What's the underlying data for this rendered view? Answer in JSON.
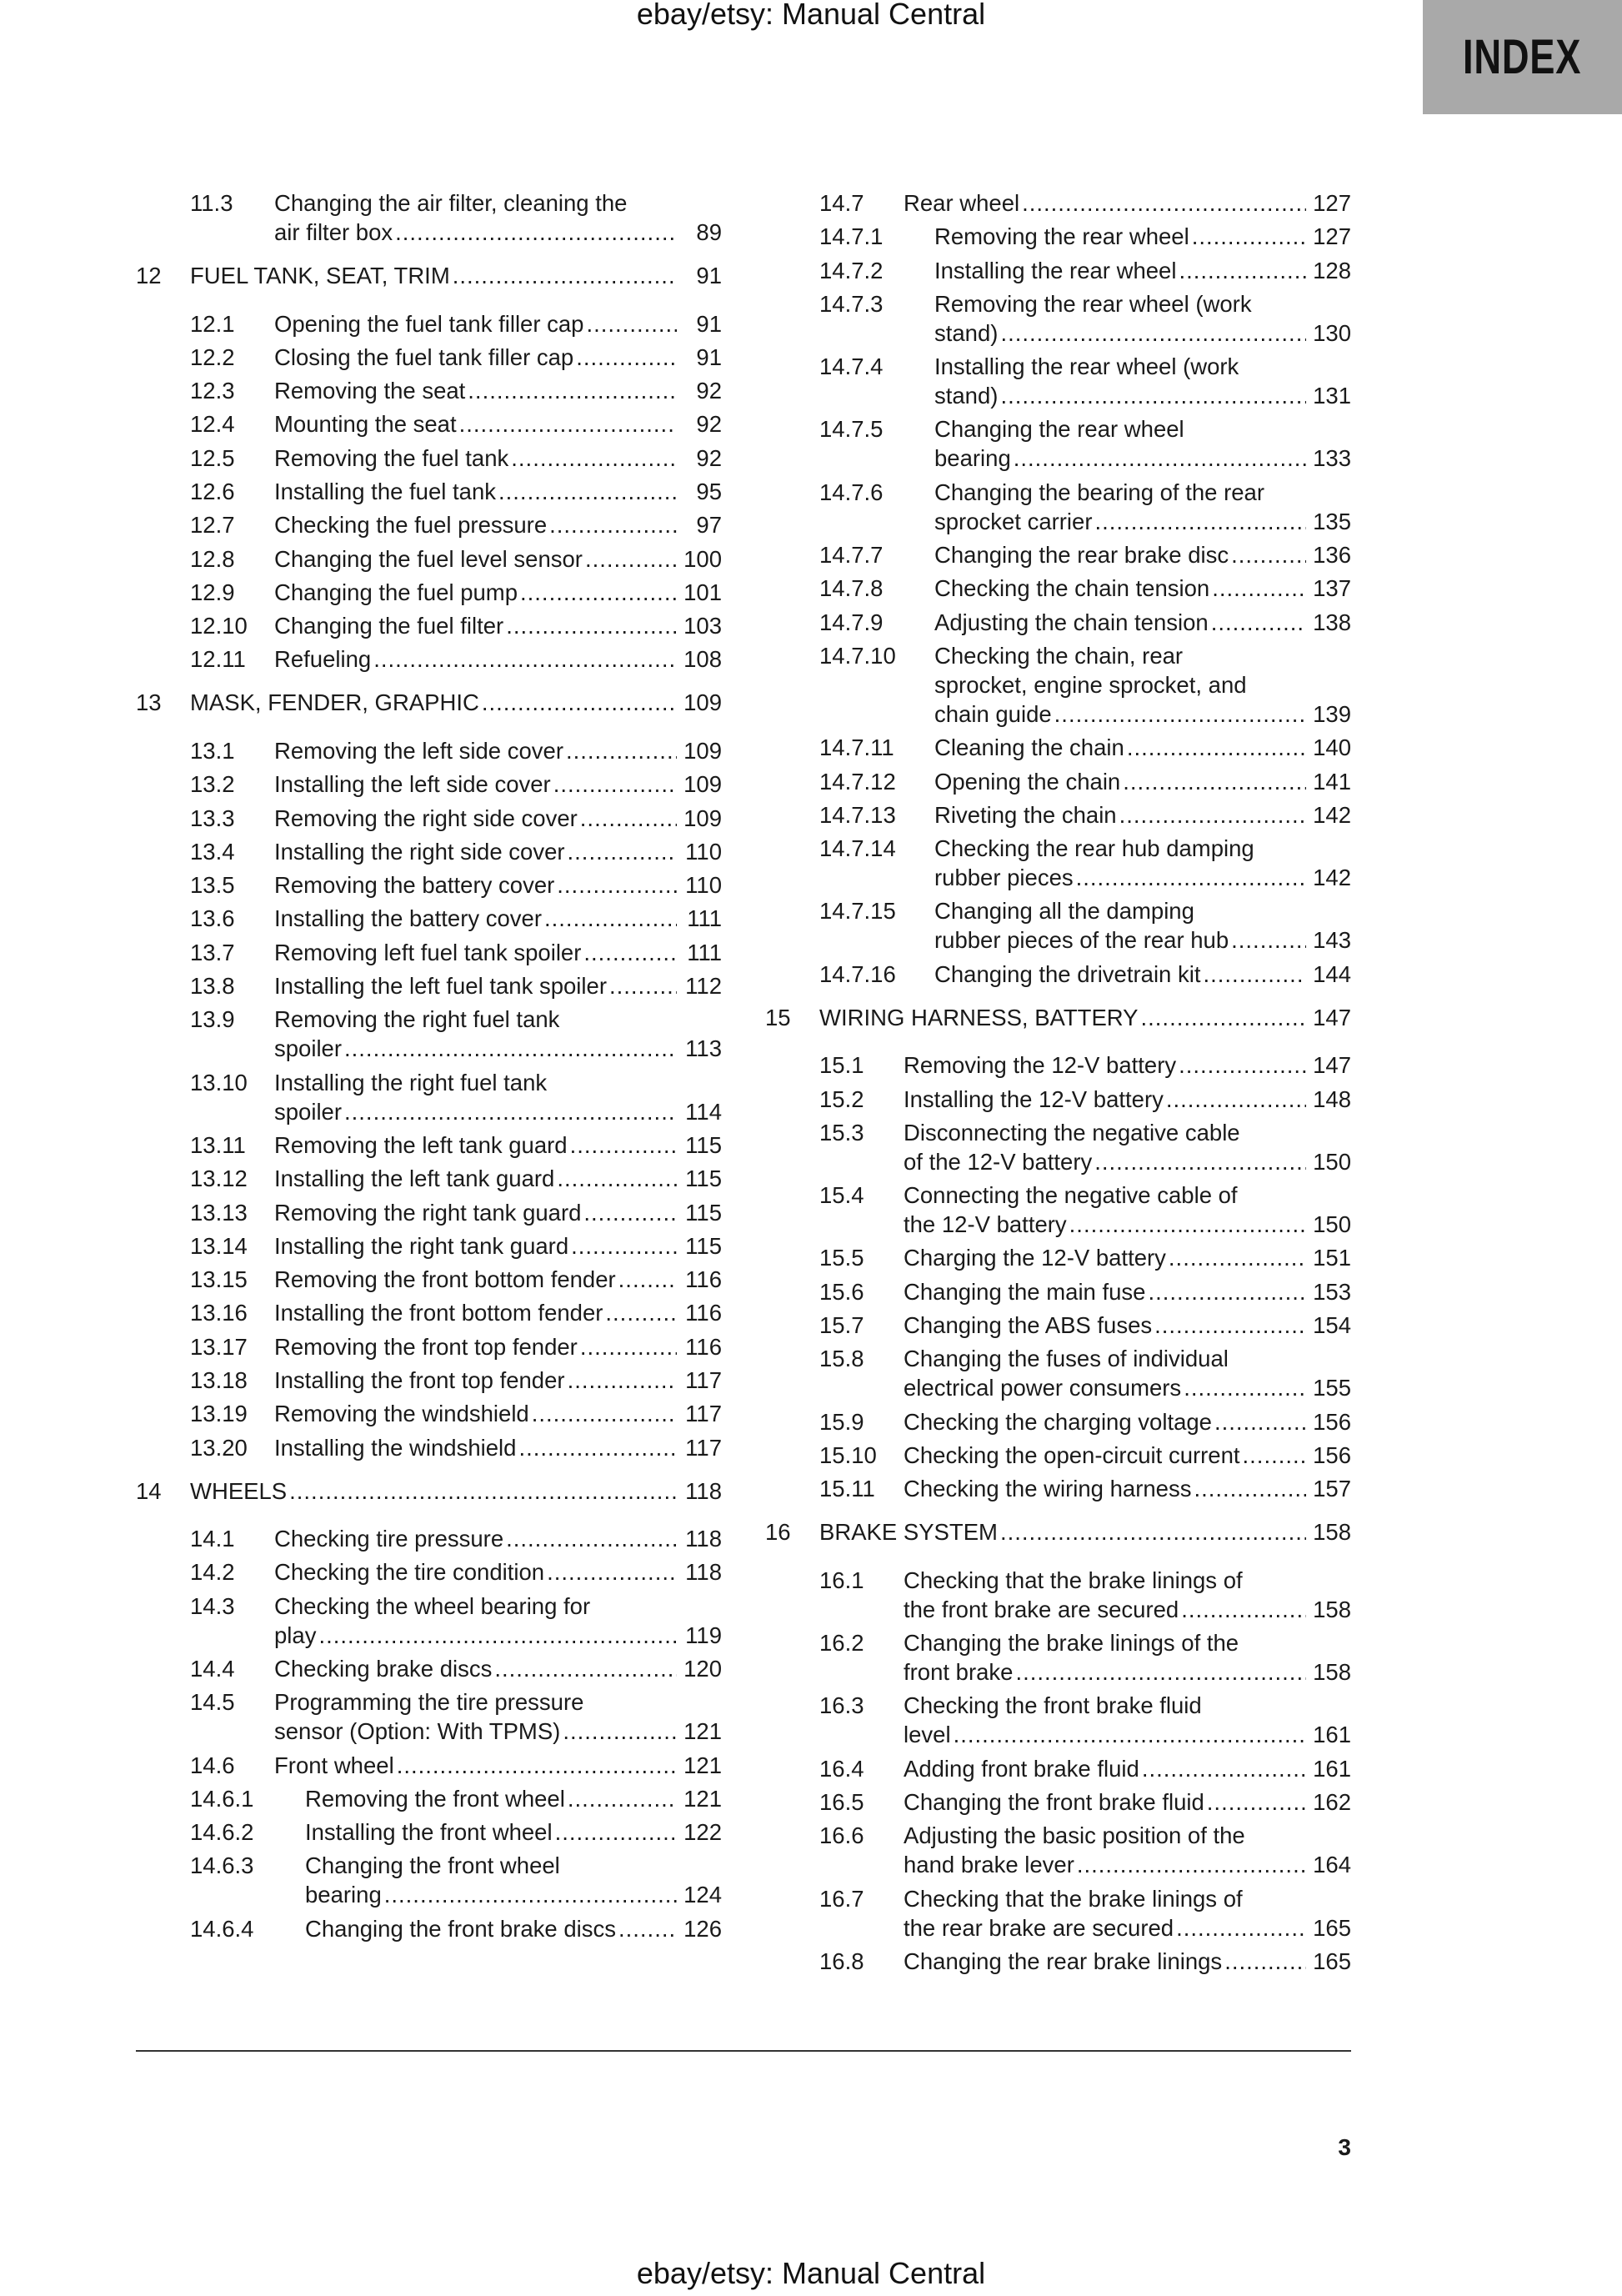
{
  "watermark_top": "ebay/etsy: Manual Central",
  "watermark_bottom": "ebay/etsy: Manual Central",
  "tab_label": "INDEX",
  "page_number": "3",
  "columns": {
    "left": [
      {
        "num": "11.3",
        "lines": [
          "Changing the air filter, cleaning the",
          "air filter box"
        ],
        "page": "89",
        "level": "section"
      },
      {
        "num": "12",
        "lines": [
          "FUEL TANK, SEAT, TRIM"
        ],
        "page": "91",
        "level": "chapter"
      },
      {
        "num": "12.1",
        "lines": [
          "Opening the fuel tank filler cap"
        ],
        "page": "91",
        "level": "section"
      },
      {
        "num": "12.2",
        "lines": [
          "Closing the fuel tank filler cap"
        ],
        "page": "91",
        "level": "section"
      },
      {
        "num": "12.3",
        "lines": [
          "Removing the seat"
        ],
        "page": "92",
        "level": "section"
      },
      {
        "num": "12.4",
        "lines": [
          "Mounting the seat"
        ],
        "page": "92",
        "level": "section"
      },
      {
        "num": "12.5",
        "lines": [
          "Removing the fuel tank"
        ],
        "page": "92",
        "level": "section"
      },
      {
        "num": "12.6",
        "lines": [
          "Installing the fuel tank"
        ],
        "page": "95",
        "level": "section"
      },
      {
        "num": "12.7",
        "lines": [
          "Checking the fuel pressure"
        ],
        "page": "97",
        "level": "section"
      },
      {
        "num": "12.8",
        "lines": [
          "Changing the fuel level sensor"
        ],
        "page": "100",
        "level": "section"
      },
      {
        "num": "12.9",
        "lines": [
          "Changing the fuel pump"
        ],
        "page": "101",
        "level": "section"
      },
      {
        "num": "12.10",
        "lines": [
          "Changing the fuel filter"
        ],
        "page": "103",
        "level": "section"
      },
      {
        "num": "12.11",
        "lines": [
          "Refueling"
        ],
        "page": "108",
        "level": "section"
      },
      {
        "num": "13",
        "lines": [
          "MASK, FENDER, GRAPHIC"
        ],
        "page": "109",
        "level": "chapter"
      },
      {
        "num": "13.1",
        "lines": [
          "Removing the left side cover"
        ],
        "page": "109",
        "level": "section"
      },
      {
        "num": "13.2",
        "lines": [
          "Installing the left side cover"
        ],
        "page": "109",
        "level": "section"
      },
      {
        "num": "13.3",
        "lines": [
          "Removing the right side cover"
        ],
        "page": "109",
        "level": "section"
      },
      {
        "num": "13.4",
        "lines": [
          "Installing the right side cover"
        ],
        "page": "110",
        "level": "section"
      },
      {
        "num": "13.5",
        "lines": [
          "Removing the battery cover"
        ],
        "page": "110",
        "level": "section"
      },
      {
        "num": "13.6",
        "lines": [
          "Installing the battery cover"
        ],
        "page": "111",
        "level": "section"
      },
      {
        "num": "13.7",
        "lines": [
          "Removing left fuel tank spoiler"
        ],
        "page": "111",
        "level": "section"
      },
      {
        "num": "13.8",
        "lines": [
          "Installing the left fuel tank spoiler"
        ],
        "page": "112",
        "level": "section"
      },
      {
        "num": "13.9",
        "lines": [
          "Removing the right fuel tank",
          "spoiler"
        ],
        "page": "113",
        "level": "section"
      },
      {
        "num": "13.10",
        "lines": [
          "Installing the right fuel tank",
          "spoiler"
        ],
        "page": "114",
        "level": "section"
      },
      {
        "num": "13.11",
        "lines": [
          "Removing the left tank guard"
        ],
        "page": "115",
        "level": "section"
      },
      {
        "num": "13.12",
        "lines": [
          "Installing the left tank guard"
        ],
        "page": "115",
        "level": "section"
      },
      {
        "num": "13.13",
        "lines": [
          "Removing the right tank guard"
        ],
        "page": "115",
        "level": "section"
      },
      {
        "num": "13.14",
        "lines": [
          "Installing the right tank guard"
        ],
        "page": "115",
        "level": "section"
      },
      {
        "num": "13.15",
        "lines": [
          "Removing the front bottom fender"
        ],
        "page": "116",
        "level": "section"
      },
      {
        "num": "13.16",
        "lines": [
          "Installing the front bottom fender"
        ],
        "page": "116",
        "level": "section"
      },
      {
        "num": "13.17",
        "lines": [
          "Removing the front top fender"
        ],
        "page": "116",
        "level": "section"
      },
      {
        "num": "13.18",
        "lines": [
          "Installing the front top fender"
        ],
        "page": "117",
        "level": "section"
      },
      {
        "num": "13.19",
        "lines": [
          "Removing the windshield"
        ],
        "page": "117",
        "level": "section"
      },
      {
        "num": "13.20",
        "lines": [
          "Installing the windshield"
        ],
        "page": "117",
        "level": "section"
      },
      {
        "num": "14",
        "lines": [
          "WHEELS"
        ],
        "page": "118",
        "level": "chapter"
      },
      {
        "num": "14.1",
        "lines": [
          "Checking tire pressure"
        ],
        "page": "118",
        "level": "section"
      },
      {
        "num": "14.2",
        "lines": [
          "Checking the tire condition"
        ],
        "page": "118",
        "level": "section"
      },
      {
        "num": "14.3",
        "lines": [
          "Checking the wheel bearing for",
          "play"
        ],
        "page": "119",
        "level": "section"
      },
      {
        "num": "14.4",
        "lines": [
          "Checking brake discs"
        ],
        "page": "120",
        "level": "section"
      },
      {
        "num": "14.5",
        "lines": [
          "Programming the tire pressure",
          "sensor (Option: With TPMS)"
        ],
        "page": "121",
        "level": "section"
      },
      {
        "num": "14.6",
        "lines": [
          "Front wheel"
        ],
        "page": "121",
        "level": "section"
      },
      {
        "num": "14.6.1",
        "lines": [
          "Removing the front wheel"
        ],
        "page": "121",
        "level": "sub"
      },
      {
        "num": "14.6.2",
        "lines": [
          "Installing the front wheel"
        ],
        "page": "122",
        "level": "sub"
      },
      {
        "num": "14.6.3",
        "lines": [
          "Changing the front wheel",
          "bearing"
        ],
        "page": "124",
        "level": "sub"
      },
      {
        "num": "14.6.4",
        "lines": [
          "Changing the front brake discs"
        ],
        "page": "126",
        "level": "sub"
      }
    ],
    "right": [
      {
        "num": "14.7",
        "lines": [
          "Rear wheel"
        ],
        "page": "127",
        "level": "section"
      },
      {
        "num": "14.7.1",
        "lines": [
          "Removing the rear wheel"
        ],
        "page": "127",
        "level": "sub"
      },
      {
        "num": "14.7.2",
        "lines": [
          "Installing the rear wheel"
        ],
        "page": "128",
        "level": "sub"
      },
      {
        "num": "14.7.3",
        "lines": [
          "Removing the rear wheel (work",
          "stand)"
        ],
        "page": "130",
        "level": "sub"
      },
      {
        "num": "14.7.4",
        "lines": [
          "Installing the rear wheel (work",
          "stand)"
        ],
        "page": "131",
        "level": "sub"
      },
      {
        "num": "14.7.5",
        "lines": [
          "Changing the rear wheel",
          "bearing"
        ],
        "page": "133",
        "level": "sub"
      },
      {
        "num": "14.7.6",
        "lines": [
          "Changing the bearing of the rear",
          "sprocket carrier"
        ],
        "page": "135",
        "level": "sub"
      },
      {
        "num": "14.7.7",
        "lines": [
          "Changing the rear brake disc"
        ],
        "page": "136",
        "level": "sub"
      },
      {
        "num": "14.7.8",
        "lines": [
          "Checking the chain tension"
        ],
        "page": "137",
        "level": "sub"
      },
      {
        "num": "14.7.9",
        "lines": [
          "Adjusting the chain tension"
        ],
        "page": "138",
        "level": "sub"
      },
      {
        "num": "14.7.10",
        "lines": [
          "Checking the chain, rear",
          "sprocket, engine sprocket, and",
          "chain guide"
        ],
        "page": "139",
        "level": "sub"
      },
      {
        "num": "14.7.11",
        "lines": [
          "Cleaning the chain"
        ],
        "page": "140",
        "level": "sub"
      },
      {
        "num": "14.7.12",
        "lines": [
          "Opening the chain"
        ],
        "page": "141",
        "level": "sub"
      },
      {
        "num": "14.7.13",
        "lines": [
          "Riveting the chain"
        ],
        "page": "142",
        "level": "sub"
      },
      {
        "num": "14.7.14",
        "lines": [
          "Checking the rear hub damping",
          "rubber pieces"
        ],
        "page": "142",
        "level": "sub"
      },
      {
        "num": "14.7.15",
        "lines": [
          "Changing all the damping",
          "rubber pieces of the rear hub"
        ],
        "page": "143",
        "level": "sub"
      },
      {
        "num": "14.7.16",
        "lines": [
          "Changing the drivetrain kit"
        ],
        "page": "144",
        "level": "sub"
      },
      {
        "num": "15",
        "lines": [
          "WIRING HARNESS, BATTERY"
        ],
        "page": "147",
        "level": "chapter"
      },
      {
        "num": "15.1",
        "lines": [
          "Removing the 12-V battery"
        ],
        "page": "147",
        "level": "section"
      },
      {
        "num": "15.2",
        "lines": [
          "Installing the 12-V battery"
        ],
        "page": "148",
        "level": "section"
      },
      {
        "num": "15.3",
        "lines": [
          "Disconnecting the negative cable",
          "of the 12-V battery"
        ],
        "page": "150",
        "level": "section"
      },
      {
        "num": "15.4",
        "lines": [
          "Connecting the negative cable of",
          "the 12-V battery"
        ],
        "page": "150",
        "level": "section"
      },
      {
        "num": "15.5",
        "lines": [
          "Charging the 12-V battery"
        ],
        "page": "151",
        "level": "section"
      },
      {
        "num": "15.6",
        "lines": [
          "Changing the main fuse"
        ],
        "page": "153",
        "level": "section"
      },
      {
        "num": "15.7",
        "lines": [
          "Changing the ABS fuses"
        ],
        "page": "154",
        "level": "section"
      },
      {
        "num": "15.8",
        "lines": [
          "Changing the fuses of individual",
          "electrical power consumers"
        ],
        "page": "155",
        "level": "section"
      },
      {
        "num": "15.9",
        "lines": [
          "Checking the charging voltage"
        ],
        "page": "156",
        "level": "section"
      },
      {
        "num": "15.10",
        "lines": [
          "Checking the open-circuit current"
        ],
        "page": "156",
        "level": "section"
      },
      {
        "num": "15.11",
        "lines": [
          "Checking the wiring harness"
        ],
        "page": "157",
        "level": "section"
      },
      {
        "num": "16",
        "lines": [
          "BRAKE SYSTEM"
        ],
        "page": "158",
        "level": "chapter"
      },
      {
        "num": "16.1",
        "lines": [
          "Checking that the brake linings of",
          "the front brake are secured"
        ],
        "page": "158",
        "level": "section"
      },
      {
        "num": "16.2",
        "lines": [
          "Changing the brake linings of the",
          "front brake"
        ],
        "page": "158",
        "level": "section"
      },
      {
        "num": "16.3",
        "lines": [
          "Checking the front brake fluid",
          "level"
        ],
        "page": "161",
        "level": "section"
      },
      {
        "num": "16.4",
        "lines": [
          "Adding front brake fluid"
        ],
        "page": "161",
        "level": "section"
      },
      {
        "num": "16.5",
        "lines": [
          "Changing the front brake fluid"
        ],
        "page": "162",
        "level": "section"
      },
      {
        "num": "16.6",
        "lines": [
          "Adjusting the basic position of the",
          "hand brake lever"
        ],
        "page": "164",
        "level": "section"
      },
      {
        "num": "16.7",
        "lines": [
          "Checking that the brake linings of",
          "the rear brake are secured"
        ],
        "page": "165",
        "level": "section"
      },
      {
        "num": "16.8",
        "lines": [
          "Changing the rear brake linings"
        ],
        "page": "165",
        "level": "section"
      }
    ]
  }
}
